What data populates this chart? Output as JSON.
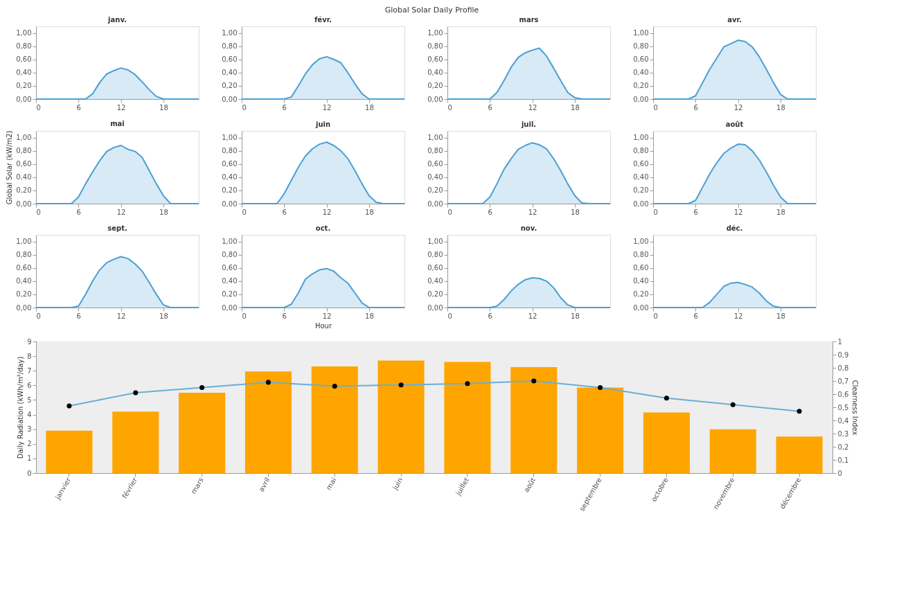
{
  "chart_data": [
    {
      "type": "area",
      "title": "janv.",
      "annotations": [
        "Global Solar Daily Profile"
      ],
      "x": [
        0,
        1,
        2,
        3,
        4,
        5,
        6,
        7,
        8,
        9,
        10,
        11,
        12,
        13,
        14,
        15,
        16,
        17,
        18,
        19,
        20,
        21,
        22,
        23
      ],
      "series": [
        {
          "color": "#4a9fd4",
          "values": [
            0,
            0,
            0,
            0,
            0,
            0,
            0,
            0,
            0.08,
            0.25,
            0.38,
            0.43,
            0.47,
            0.44,
            0.37,
            0.26,
            0.14,
            0.04,
            0,
            0,
            0,
            0,
            0,
            0
          ]
        }
      ],
      "xlim": [
        0,
        23
      ],
      "xticks": [
        0,
        6,
        12,
        18
      ],
      "ylim": [
        0,
        1.1
      ],
      "yticks": [
        {
          "value": 0,
          "label": "0,00"
        },
        {
          "value": 0.2,
          "label": "0,20"
        },
        {
          "value": 0.4,
          "label": "0,40"
        },
        {
          "value": 0.6,
          "label": "0,60"
        },
        {
          "value": 0.8,
          "label": "0,80"
        },
        {
          "value": 1,
          "label": "1,00"
        }
      ]
    },
    {
      "type": "area",
      "title": "févr.",
      "x": [
        0,
        1,
        2,
        3,
        4,
        5,
        6,
        7,
        8,
        9,
        10,
        11,
        12,
        13,
        14,
        15,
        16,
        17,
        18,
        19,
        20,
        21,
        22,
        23
      ],
      "series": [
        {
          "color": "#4a9fd4",
          "values": [
            0,
            0,
            0,
            0,
            0,
            0,
            0,
            0.03,
            0.2,
            0.38,
            0.52,
            0.61,
            0.64,
            0.6,
            0.55,
            0.4,
            0.23,
            0.08,
            0,
            0,
            0,
            0,
            0,
            0
          ]
        }
      ],
      "xlim": [
        0,
        23
      ],
      "xticks": [
        0,
        6,
        12,
        18
      ],
      "ylim": [
        0,
        1.1
      ],
      "yticks": [
        {
          "value": 0,
          "label": "0,00"
        },
        {
          "value": 0.2,
          "label": "0,20"
        },
        {
          "value": 0.4,
          "label": "0,40"
        },
        {
          "value": 0.6,
          "label": "0,60"
        },
        {
          "value": 0.8,
          "label": "0,80"
        },
        {
          "value": 1,
          "label": "1,00"
        }
      ]
    },
    {
      "type": "area",
      "title": "mars",
      "x": [
        0,
        1,
        2,
        3,
        4,
        5,
        6,
        7,
        8,
        9,
        10,
        11,
        12,
        13,
        14,
        15,
        16,
        17,
        18,
        19,
        20,
        21,
        22,
        23
      ],
      "series": [
        {
          "color": "#4a9fd4",
          "values": [
            0,
            0,
            0,
            0,
            0,
            0,
            0,
            0.1,
            0.28,
            0.48,
            0.63,
            0.7,
            0.74,
            0.77,
            0.65,
            0.47,
            0.28,
            0.1,
            0.02,
            0,
            0,
            0,
            0,
            0
          ]
        }
      ],
      "xlim": [
        0,
        23
      ],
      "xticks": [
        0,
        6,
        12,
        18
      ],
      "ylim": [
        0,
        1.1
      ],
      "yticks": [
        {
          "value": 0,
          "label": "0,00"
        },
        {
          "value": 0.2,
          "label": "0,20"
        },
        {
          "value": 0.4,
          "label": "0,40"
        },
        {
          "value": 0.6,
          "label": "0,60"
        },
        {
          "value": 0.8,
          "label": "0,80"
        },
        {
          "value": 1,
          "label": "1,00"
        }
      ]
    },
    {
      "type": "area",
      "title": "avr.",
      "x": [
        0,
        1,
        2,
        3,
        4,
        5,
        6,
        7,
        8,
        9,
        10,
        11,
        12,
        13,
        14,
        15,
        16,
        17,
        18,
        19,
        20,
        21,
        22,
        23
      ],
      "series": [
        {
          "color": "#4a9fd4",
          "values": [
            0,
            0,
            0,
            0,
            0,
            0,
            0.05,
            0.25,
            0.45,
            0.62,
            0.79,
            0.84,
            0.89,
            0.87,
            0.79,
            0.64,
            0.45,
            0.25,
            0.07,
            0,
            0,
            0,
            0,
            0
          ]
        }
      ],
      "xlim": [
        0,
        23
      ],
      "xticks": [
        0,
        6,
        12,
        18
      ],
      "ylim": [
        0,
        1.1
      ],
      "yticks": [
        {
          "value": 0,
          "label": "0,00"
        },
        {
          "value": 0.2,
          "label": "0,20"
        },
        {
          "value": 0.4,
          "label": "0,40"
        },
        {
          "value": 0.6,
          "label": "0,60"
        },
        {
          "value": 0.8,
          "label": "0,80"
        },
        {
          "value": 1,
          "label": "1,00"
        }
      ]
    },
    {
      "type": "area",
      "title": "mai",
      "ylabel": "Global Solar (kW/m2)",
      "x": [
        0,
        1,
        2,
        3,
        4,
        5,
        6,
        7,
        8,
        9,
        10,
        11,
        12,
        13,
        14,
        15,
        16,
        17,
        18,
        19,
        20,
        21,
        22,
        23
      ],
      "series": [
        {
          "color": "#4a9fd4",
          "values": [
            0,
            0,
            0,
            0,
            0,
            0,
            0.1,
            0.3,
            0.48,
            0.65,
            0.79,
            0.85,
            0.88,
            0.82,
            0.79,
            0.7,
            0.5,
            0.3,
            0.12,
            0,
            0,
            0,
            0,
            0
          ]
        }
      ],
      "xlim": [
        0,
        23
      ],
      "xticks": [
        0,
        6,
        12,
        18
      ],
      "ylim": [
        0,
        1.1
      ],
      "yticks": [
        {
          "value": 0,
          "label": "0,00"
        },
        {
          "value": 0.2,
          "label": "0,20"
        },
        {
          "value": 0.4,
          "label": "0,40"
        },
        {
          "value": 0.6,
          "label": "0,60"
        },
        {
          "value": 0.8,
          "label": "0,80"
        },
        {
          "value": 1,
          "label": "1,00"
        }
      ]
    },
    {
      "type": "area",
      "title": "juin",
      "x": [
        0,
        1,
        2,
        3,
        4,
        5,
        6,
        7,
        8,
        9,
        10,
        11,
        12,
        13,
        14,
        15,
        16,
        17,
        18,
        19,
        20,
        21,
        22,
        23
      ],
      "series": [
        {
          "color": "#4a9fd4",
          "values": [
            0,
            0,
            0,
            0,
            0,
            0,
            0.15,
            0.35,
            0.55,
            0.72,
            0.83,
            0.9,
            0.93,
            0.88,
            0.8,
            0.68,
            0.5,
            0.3,
            0.12,
            0.02,
            0,
            0,
            0,
            0
          ]
        }
      ],
      "xlim": [
        0,
        23
      ],
      "xticks": [
        0,
        6,
        12,
        18
      ],
      "ylim": [
        0,
        1.1
      ],
      "yticks": [
        {
          "value": 0,
          "label": "0,00"
        },
        {
          "value": 0.2,
          "label": "0,20"
        },
        {
          "value": 0.4,
          "label": "0,40"
        },
        {
          "value": 0.6,
          "label": "0,60"
        },
        {
          "value": 0.8,
          "label": "0,80"
        },
        {
          "value": 1,
          "label": "1,00"
        }
      ]
    },
    {
      "type": "area",
      "title": "juil.",
      "x": [
        0,
        1,
        2,
        3,
        4,
        5,
        6,
        7,
        8,
        9,
        10,
        11,
        12,
        13,
        14,
        15,
        16,
        17,
        18,
        19,
        20,
        21,
        22,
        23
      ],
      "series": [
        {
          "color": "#4a9fd4",
          "values": [
            0,
            0,
            0,
            0,
            0,
            0,
            0.1,
            0.3,
            0.52,
            0.68,
            0.82,
            0.88,
            0.92,
            0.89,
            0.83,
            0.68,
            0.5,
            0.3,
            0.12,
            0.01,
            0,
            0,
            0,
            0
          ]
        }
      ],
      "xlim": [
        0,
        23
      ],
      "xticks": [
        0,
        6,
        12,
        18
      ],
      "ylim": [
        0,
        1.1
      ],
      "yticks": [
        {
          "value": 0,
          "label": "0,00"
        },
        {
          "value": 0.2,
          "label": "0,20"
        },
        {
          "value": 0.4,
          "label": "0,40"
        },
        {
          "value": 0.6,
          "label": "0,60"
        },
        {
          "value": 0.8,
          "label": "0,80"
        },
        {
          "value": 1,
          "label": "1,00"
        }
      ]
    },
    {
      "type": "area",
      "title": "août",
      "x": [
        0,
        1,
        2,
        3,
        4,
        5,
        6,
        7,
        8,
        9,
        10,
        11,
        12,
        13,
        14,
        15,
        16,
        17,
        18,
        19,
        20,
        21,
        22,
        23
      ],
      "series": [
        {
          "color": "#4a9fd4",
          "values": [
            0,
            0,
            0,
            0,
            0,
            0,
            0.05,
            0.25,
            0.45,
            0.62,
            0.76,
            0.84,
            0.9,
            0.89,
            0.8,
            0.66,
            0.48,
            0.28,
            0.1,
            0,
            0,
            0,
            0,
            0
          ]
        }
      ],
      "xlim": [
        0,
        23
      ],
      "xticks": [
        0,
        6,
        12,
        18
      ],
      "ylim": [
        0,
        1.1
      ],
      "yticks": [
        {
          "value": 0,
          "label": "0,00"
        },
        {
          "value": 0.2,
          "label": "0,20"
        },
        {
          "value": 0.4,
          "label": "0,40"
        },
        {
          "value": 0.6,
          "label": "0,60"
        },
        {
          "value": 0.8,
          "label": "0,80"
        },
        {
          "value": 1,
          "label": "1,00"
        }
      ]
    },
    {
      "type": "area",
      "title": "sept.",
      "x": [
        0,
        1,
        2,
        3,
        4,
        5,
        6,
        7,
        8,
        9,
        10,
        11,
        12,
        13,
        14,
        15,
        16,
        17,
        18,
        19,
        20,
        21,
        22,
        23
      ],
      "series": [
        {
          "color": "#4a9fd4",
          "values": [
            0,
            0,
            0,
            0,
            0,
            0,
            0.02,
            0.2,
            0.4,
            0.57,
            0.68,
            0.73,
            0.77,
            0.74,
            0.66,
            0.55,
            0.38,
            0.2,
            0.04,
            0,
            0,
            0,
            0,
            0
          ]
        }
      ],
      "xlim": [
        0,
        23
      ],
      "xticks": [
        0,
        6,
        12,
        18
      ],
      "ylim": [
        0,
        1.1
      ],
      "yticks": [
        {
          "value": 0,
          "label": "0,00"
        },
        {
          "value": 0.2,
          "label": "0,20"
        },
        {
          "value": 0.4,
          "label": "0,40"
        },
        {
          "value": 0.6,
          "label": "0,60"
        },
        {
          "value": 0.8,
          "label": "0,80"
        },
        {
          "value": 1,
          "label": "1,00"
        }
      ]
    },
    {
      "type": "area",
      "title": "oct.",
      "xlabel": "Hour",
      "x": [
        0,
        1,
        2,
        3,
        4,
        5,
        6,
        7,
        8,
        9,
        10,
        11,
        12,
        13,
        14,
        15,
        16,
        17,
        18,
        19,
        20,
        21,
        22,
        23
      ],
      "series": [
        {
          "color": "#4a9fd4",
          "values": [
            0,
            0,
            0,
            0,
            0,
            0,
            0,
            0.05,
            0.22,
            0.43,
            0.51,
            0.57,
            0.59,
            0.55,
            0.45,
            0.37,
            0.22,
            0.07,
            0,
            0,
            0,
            0,
            0,
            0
          ]
        }
      ],
      "xlim": [
        0,
        23
      ],
      "xticks": [
        0,
        6,
        12,
        18
      ],
      "ylim": [
        0,
        1.1
      ],
      "yticks": [
        {
          "value": 0,
          "label": "0,00"
        },
        {
          "value": 0.2,
          "label": "0,20"
        },
        {
          "value": 0.4,
          "label": "0,40"
        },
        {
          "value": 0.6,
          "label": "0,60"
        },
        {
          "value": 0.8,
          "label": "0,80"
        },
        {
          "value": 1,
          "label": "1,00"
        }
      ]
    },
    {
      "type": "area",
      "title": "nov.",
      "x": [
        0,
        1,
        2,
        3,
        4,
        5,
        6,
        7,
        8,
        9,
        10,
        11,
        12,
        13,
        14,
        15,
        16,
        17,
        18,
        19,
        20,
        21,
        22,
        23
      ],
      "series": [
        {
          "color": "#4a9fd4",
          "values": [
            0,
            0,
            0,
            0,
            0,
            0,
            0,
            0.02,
            0.12,
            0.25,
            0.35,
            0.42,
            0.45,
            0.44,
            0.4,
            0.3,
            0.15,
            0.04,
            0,
            0,
            0,
            0,
            0,
            0
          ]
        }
      ],
      "xlim": [
        0,
        23
      ],
      "xticks": [
        0,
        6,
        12,
        18
      ],
      "ylim": [
        0,
        1.1
      ],
      "yticks": [
        {
          "value": 0,
          "label": "0,00"
        },
        {
          "value": 0.2,
          "label": "0,20"
        },
        {
          "value": 0.4,
          "label": "0,40"
        },
        {
          "value": 0.6,
          "label": "0,60"
        },
        {
          "value": 0.8,
          "label": "0,80"
        },
        {
          "value": 1,
          "label": "1,00"
        }
      ]
    },
    {
      "type": "area",
      "title": "déc.",
      "x": [
        0,
        1,
        2,
        3,
        4,
        5,
        6,
        7,
        8,
        9,
        10,
        11,
        12,
        13,
        14,
        15,
        16,
        17,
        18,
        19,
        20,
        21,
        22,
        23
      ],
      "series": [
        {
          "color": "#4a9fd4",
          "values": [
            0,
            0,
            0,
            0,
            0,
            0,
            0,
            0,
            0.08,
            0.2,
            0.32,
            0.37,
            0.38,
            0.35,
            0.31,
            0.22,
            0.1,
            0.02,
            0,
            0,
            0,
            0,
            0,
            0
          ]
        }
      ],
      "xlim": [
        0,
        23
      ],
      "xticks": [
        0,
        6,
        12,
        18
      ],
      "ylim": [
        0,
        1.1
      ],
      "yticks": [
        {
          "value": 0,
          "label": "0,00"
        },
        {
          "value": 0.2,
          "label": "0,20"
        },
        {
          "value": 0.4,
          "label": "0,40"
        },
        {
          "value": 0.6,
          "label": "0,60"
        },
        {
          "value": 0.8,
          "label": "0,80"
        },
        {
          "value": 1,
          "label": "1,00"
        }
      ]
    },
    {
      "type": "bar",
      "categories": [
        "janvier",
        "février",
        "mars",
        "avril",
        "mai",
        "juin",
        "juillet",
        "août",
        "septembre",
        "octobre",
        "novembre",
        "décembre"
      ],
      "ylabel": "Daily Radiation (kWh/m²/day)",
      "y2label": "Clearness Index",
      "series": [
        {
          "type": "bar",
          "color": "#ffa500",
          "values": [
            2.9,
            4.2,
            5.5,
            6.95,
            7.3,
            7.7,
            7.6,
            7.25,
            5.85,
            4.15,
            3.0,
            2.5
          ]
        },
        {
          "type": "line",
          "axis": "y2",
          "color": "#6aaed6",
          "marker": "circle",
          "values": [
            0.51,
            0.61,
            0.65,
            0.69,
            0.66,
            0.67,
            0.68,
            0.7,
            0.65,
            0.57,
            0.52,
            0.47
          ]
        }
      ],
      "ylim": [
        0,
        9
      ],
      "yticks": [
        0,
        1,
        2,
        3,
        4,
        5,
        6,
        7,
        8,
        9
      ],
      "y2lim": [
        0,
        1
      ],
      "y2ticks": [
        0,
        {
          "value": 0.1,
          "label": "0,1"
        },
        {
          "value": 0.2,
          "label": "0,2"
        },
        {
          "value": 0.3,
          "label": "0,3"
        },
        {
          "value": 0.4,
          "label": "0,4"
        },
        {
          "value": 0.5,
          "label": "0,5"
        },
        {
          "value": 0.6,
          "label": "0,6"
        },
        {
          "value": 0.7,
          "label": "0,7"
        },
        {
          "value": 0.8,
          "label": "0,8"
        },
        {
          "value": 0.9,
          "label": "0,9"
        },
        1
      ]
    }
  ]
}
